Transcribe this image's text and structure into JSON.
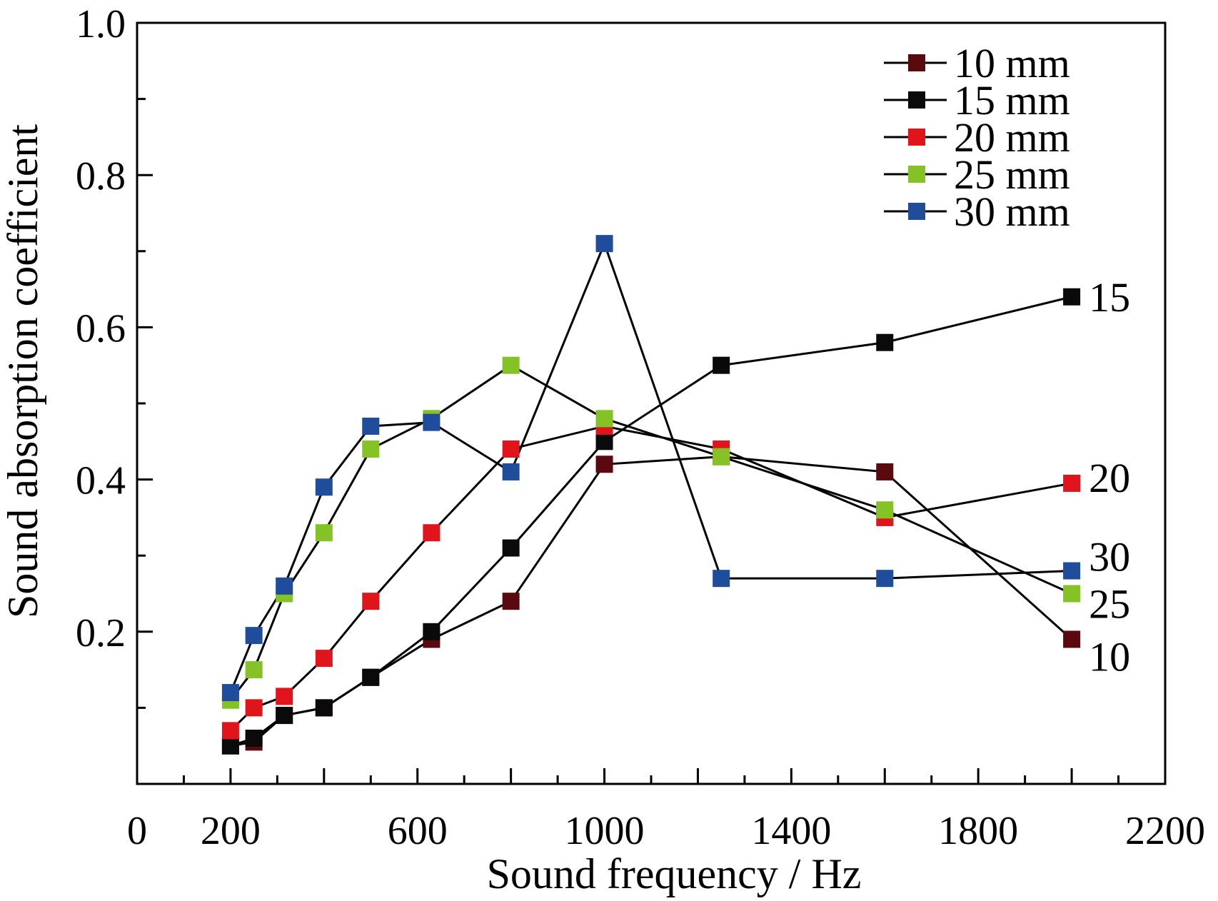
{
  "chart_data": {
    "type": "line",
    "title": "",
    "xlabel": "Sound frequency / Hz",
    "ylabel": "Sound absorption coefficient",
    "xlim": [
      0,
      2200
    ],
    "ylim": [
      0,
      1.0
    ],
    "x_ticks": [
      0,
      200,
      600,
      1000,
      1400,
      1800,
      2200
    ],
    "x_tick_labels": [
      "0",
      "200",
      "600",
      "1000",
      "1400",
      "1800",
      "2200"
    ],
    "y_ticks": [
      0.2,
      0.4,
      0.6,
      0.8,
      1.0
    ],
    "y_tick_labels": [
      "0.2",
      "0.4",
      "0.6",
      "0.8",
      "1.0"
    ],
    "grid": false,
    "legend_position": "top-right",
    "x": [
      200,
      250,
      315,
      400,
      500,
      630,
      800,
      1000,
      1250,
      1600,
      2000
    ],
    "series": [
      {
        "name": "10 mm",
        "color": "#5a0a0e",
        "end_label": "10",
        "values": [
          0.05,
          0.055,
          0.09,
          0.1,
          0.14,
          0.19,
          0.24,
          0.42,
          0.43,
          0.41,
          0.19
        ]
      },
      {
        "name": "15 mm",
        "color": "#0a0a0a",
        "end_label": "15",
        "values": [
          0.05,
          0.06,
          0.09,
          0.1,
          0.14,
          0.2,
          0.31,
          0.45,
          0.55,
          0.58,
          0.64
        ]
      },
      {
        "name": "20 mm",
        "color": "#e0151b",
        "end_label": "20",
        "values": [
          0.07,
          0.1,
          0.115,
          0.165,
          0.24,
          0.33,
          0.44,
          0.47,
          0.44,
          0.35,
          0.395
        ]
      },
      {
        "name": "25 mm",
        "color": "#84c225",
        "end_label": "25",
        "values": [
          0.11,
          0.15,
          0.25,
          0.33,
          0.44,
          0.48,
          0.55,
          0.48,
          0.43,
          0.36,
          0.25
        ]
      },
      {
        "name": "30 mm",
        "color": "#1f4d9c",
        "end_label": "30",
        "values": [
          0.12,
          0.195,
          0.26,
          0.39,
          0.47,
          0.475,
          0.41,
          0.71,
          0.27,
          0.27,
          0.28
        ]
      }
    ]
  }
}
